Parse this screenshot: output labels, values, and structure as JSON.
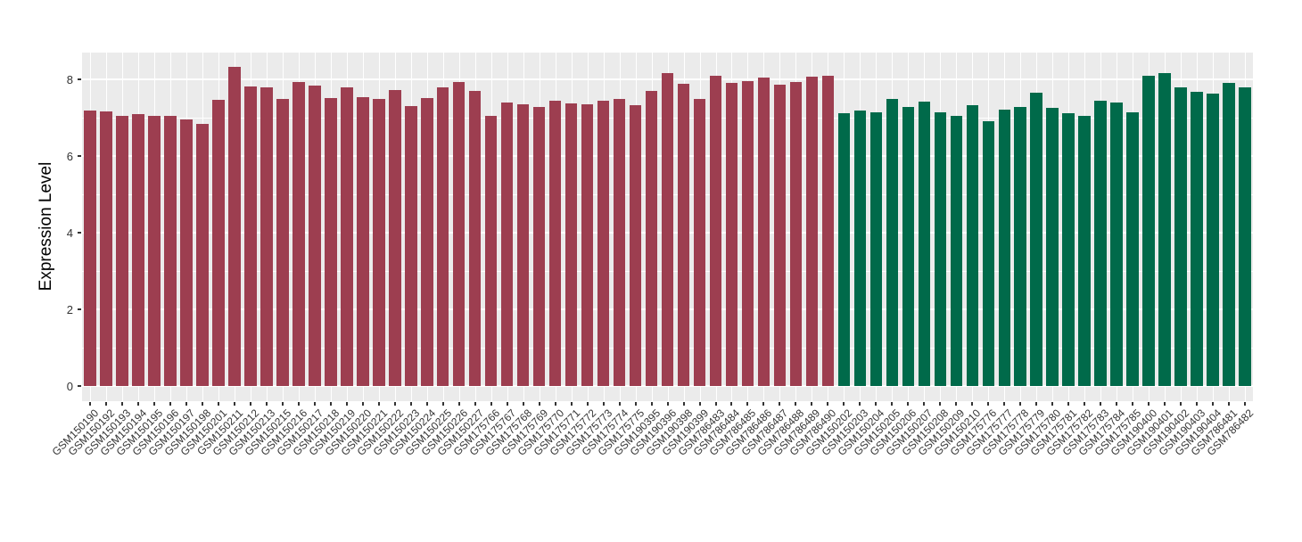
{
  "chart_data": {
    "type": "bar",
    "title": "",
    "xlabel": "",
    "ylabel": "Expression Level",
    "ylim": [
      0,
      8.7
    ],
    "yticks_major": [
      0,
      2,
      4,
      6,
      8
    ],
    "yticks_minor": [
      1,
      3,
      5,
      7
    ],
    "legend_position": "none",
    "grid": "white major+minor horizontal and per-category vertical lines on gray panel",
    "categories": [
      "GSM150190",
      "GSM150192",
      "GSM150193",
      "GSM150194",
      "GSM150195",
      "GSM150196",
      "GSM150197",
      "GSM150198",
      "GSM150201",
      "GSM150211",
      "GSM150212",
      "GSM150213",
      "GSM150215",
      "GSM150216",
      "GSM150217",
      "GSM150218",
      "GSM150219",
      "GSM150220",
      "GSM150221",
      "GSM150222",
      "GSM150223",
      "GSM150224",
      "GSM150225",
      "GSM150226",
      "GSM150227",
      "GSM175766",
      "GSM175767",
      "GSM175768",
      "GSM175769",
      "GSM175770",
      "GSM175771",
      "GSM175772",
      "GSM175773",
      "GSM175774",
      "GSM175775",
      "GSM190395",
      "GSM190396",
      "GSM190398",
      "GSM190399",
      "GSM786483",
      "GSM786484",
      "GSM786485",
      "GSM786486",
      "GSM786487",
      "GSM786488",
      "GSM786489",
      "GSM786490",
      "GSM150202",
      "GSM150203",
      "GSM150204",
      "GSM150205",
      "GSM150206",
      "GSM150207",
      "GSM150208",
      "GSM150209",
      "GSM150210",
      "GSM175776",
      "GSM175777",
      "GSM175778",
      "GSM175779",
      "GSM175780",
      "GSM175781",
      "GSM175782",
      "GSM175783",
      "GSM175784",
      "GSM175785",
      "GSM190400",
      "GSM190401",
      "GSM190402",
      "GSM190403",
      "GSM190404",
      "GSM786481",
      "GSM786482"
    ],
    "values": [
      7.19,
      7.17,
      7.05,
      7.1,
      7.05,
      7.04,
      6.96,
      6.83,
      7.46,
      8.32,
      7.81,
      7.8,
      7.48,
      7.94,
      7.83,
      7.52,
      7.79,
      7.53,
      7.49,
      7.72,
      7.3,
      7.52,
      7.79,
      7.92,
      7.71,
      7.04,
      7.4,
      7.36,
      7.27,
      7.44,
      7.38,
      7.35,
      7.44,
      7.49,
      7.32,
      7.71,
      8.17,
      7.89,
      7.49,
      8.1,
      7.9,
      7.96,
      8.05,
      7.87,
      7.93,
      8.07,
      8.1,
      7.12,
      7.18,
      7.13,
      7.48,
      7.27,
      7.41,
      7.13,
      7.05,
      7.32,
      6.9,
      7.22,
      7.29,
      7.66,
      7.25,
      7.12,
      7.05,
      7.45,
      7.4,
      7.15,
      8.1,
      8.16,
      7.79,
      7.68,
      7.64,
      7.9,
      7.8
    ],
    "groups": [
      {
        "name": "group-maroon",
        "color": "#9d3e50",
        "start": 0,
        "end": 46
      },
      {
        "name": "group-green",
        "color": "#006a4a",
        "start": 47,
        "end": 72
      }
    ]
  },
  "colors": {
    "panel_background": "#ebebeb",
    "gridline": "#ffffff",
    "axis_text": "#333333",
    "axis_title": "#000000",
    "figure_background": "#ffffff"
  }
}
